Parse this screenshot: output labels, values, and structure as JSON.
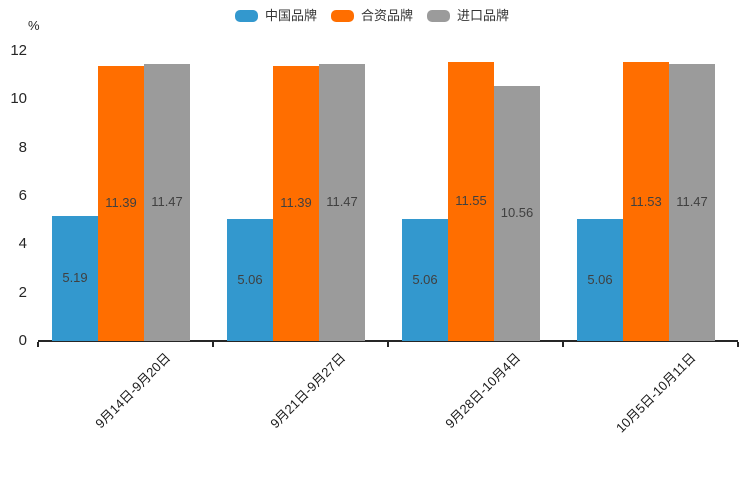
{
  "colors": {
    "series_blue": "#3398CE",
    "series_orange": "#FF6E00",
    "series_gray": "#9B9B9B",
    "axis_line": "#262626",
    "value_label": "#404040",
    "tick_label": "#262626",
    "legend_text": "#333333",
    "background": "#ffffff"
  },
  "legend": {
    "items": [
      {
        "label": "中国品牌",
        "color": "#3398CE"
      },
      {
        "label": "合资品牌",
        "color": "#FF6E00"
      },
      {
        "label": "进口品牌",
        "color": "#9B9B9B"
      }
    ]
  },
  "y_axis": {
    "unit": "%",
    "ticks": [
      0,
      2,
      4,
      6,
      8,
      10,
      12
    ],
    "max": 12
  },
  "chart_data": {
    "type": "bar",
    "title": "",
    "categories": [
      "9月14日-9月20日",
      "9月21日-9月27日",
      "9月28日-10月4日",
      "10月5日-10月11日"
    ],
    "series": [
      {
        "name": "中国品牌",
        "color": "#3398CE",
        "values": [
          5.19,
          5.06,
          5.06,
          5.06
        ]
      },
      {
        "name": "合资品牌",
        "color": "#FF6E00",
        "values": [
          11.39,
          11.39,
          11.55,
          11.53
        ]
      },
      {
        "name": "进口品牌",
        "color": "#9B9B9B",
        "values": [
          11.47,
          11.47,
          10.56,
          11.47
        ]
      }
    ],
    "value_labels": [
      [
        "5.19",
        "11.39",
        "11.47"
      ],
      [
        "5.06",
        "11.39",
        "11.47"
      ],
      [
        "5.06",
        "11.55",
        "10.56"
      ],
      [
        "5.06",
        "11.53",
        "11.47"
      ]
    ],
    "xlabel": "",
    "ylabel": "%",
    "ylim": [
      0,
      12
    ],
    "grid": false,
    "legend_position": "top"
  }
}
